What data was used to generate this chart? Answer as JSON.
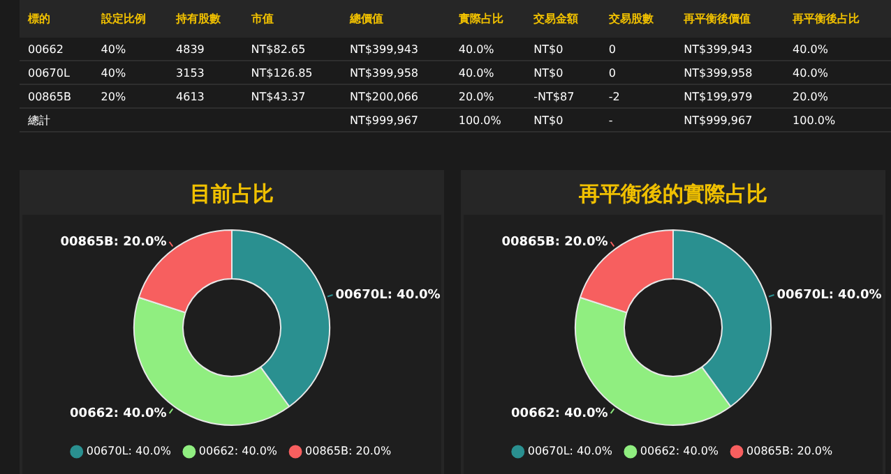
{
  "chart_data": [
    {
      "type": "other",
      "categories": [
        "標的",
        "設定比例",
        "持有股數",
        "市值",
        "總價值",
        "實際占比",
        "交易金額",
        "交易股數",
        "再平衡後價值",
        "再平衡後占比"
      ],
      "annotations": [
        "00662",
        "40%",
        "4839",
        "NT$82.65",
        "NT$399,943",
        "40.0%",
        "NT$0",
        "0",
        "NT$399,943",
        "40.0%",
        "00670L",
        "40%",
        "3153",
        "NT$126.85",
        "NT$399,958",
        "40.0%",
        "NT$0",
        "0",
        "NT$399,958",
        "40.0%",
        "00865B",
        "20%",
        "4613",
        "NT$43.37",
        "NT$200,066",
        "20.0%",
        "-NT$87",
        "-2",
        "NT$199,979",
        "20.0%",
        "總計",
        null,
        null,
        null,
        "NT$999,967",
        "100.0%",
        "NT$0",
        "-",
        "NT$999,967",
        "100.0%"
      ]
    },
    {
      "type": "donut",
      "title": "目前占比",
      "categories": [
        "00670L",
        "00662",
        "00865B"
      ],
      "values": [
        40,
        40,
        20
      ],
      "value_labels": [
        "40.0%",
        "40.0%",
        "20.0%"
      ],
      "colors": [
        "#2a9090",
        "#90ee80",
        "#f75f5f"
      ],
      "legend": "bottom"
    },
    {
      "type": "donut",
      "title": "再平衡後的實際占比",
      "categories": [
        "00670L",
        "00662",
        "00865B"
      ],
      "values": [
        40,
        40,
        20
      ],
      "value_labels": [
        "40.0%",
        "40.0%",
        "20.0%"
      ],
      "colors": [
        "#2a9090",
        "#90ee80",
        "#f75f5f"
      ],
      "legend": "bottom"
    }
  ]
}
